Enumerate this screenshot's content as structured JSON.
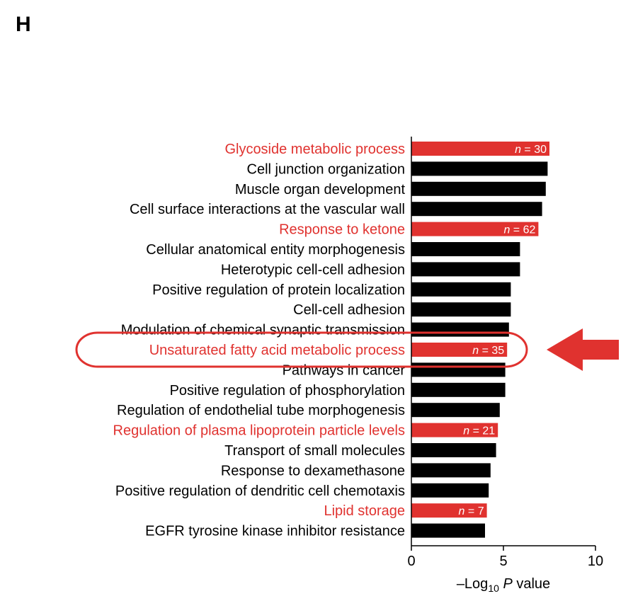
{
  "panel_label": "H",
  "colors": {
    "highlight": "#e0322f",
    "default": "#000000",
    "annotation": "#e0322f"
  },
  "chart_data": {
    "type": "bar",
    "orientation": "horizontal",
    "categories": [
      "Glycoside metabolic process",
      "Cell junction organization",
      "Muscle organ development",
      "Cell surface interactions at the vascular wall",
      "Response to ketone",
      "Cellular anatomical entity morphogenesis",
      "Heterotypic cell-cell adhesion",
      "Positive regulation of protein localization",
      "Cell-cell adhesion",
      "Modulation of chemical synaptic transmission",
      "Unsaturated fatty acid metabolic process",
      "Pathways in cancer",
      "Positive regulation of phosphorylation",
      "Regulation of endothelial tube morphogenesis",
      "Regulation of plasma lipoprotein particle levels",
      "Transport of small molecules",
      "Response to dexamethasone",
      "Positive regulation of dendritic cell chemotaxis",
      "Lipid storage",
      "EGFR tyrosine kinase inhibitor resistance"
    ],
    "values": [
      7.5,
      7.4,
      7.3,
      7.1,
      6.9,
      5.9,
      5.9,
      5.4,
      5.4,
      5.3,
      5.2,
      5.1,
      5.1,
      4.8,
      4.7,
      4.6,
      4.3,
      4.2,
      4.1,
      4.0
    ],
    "highlighted": [
      true,
      false,
      false,
      false,
      true,
      false,
      false,
      false,
      false,
      false,
      true,
      false,
      false,
      false,
      true,
      false,
      false,
      false,
      true,
      false
    ],
    "bar_labels": [
      "n = 30",
      "",
      "",
      "",
      "n = 62",
      "",
      "",
      "",
      "",
      "",
      "n = 35",
      "",
      "",
      "",
      "n = 21",
      "",
      "",
      "",
      "n = 7",
      ""
    ],
    "xlim": [
      0,
      10
    ],
    "xticks": [
      "0",
      "5",
      "10"
    ],
    "xlabel": {
      "prefix": "–Log",
      "subscript": "10",
      "italic": "P",
      "suffix": " value"
    },
    "annotation": {
      "circled_category": "Unsaturated fatty acid metabolic process",
      "arrow": "pointing-left",
      "color": "#e0322f"
    }
  }
}
